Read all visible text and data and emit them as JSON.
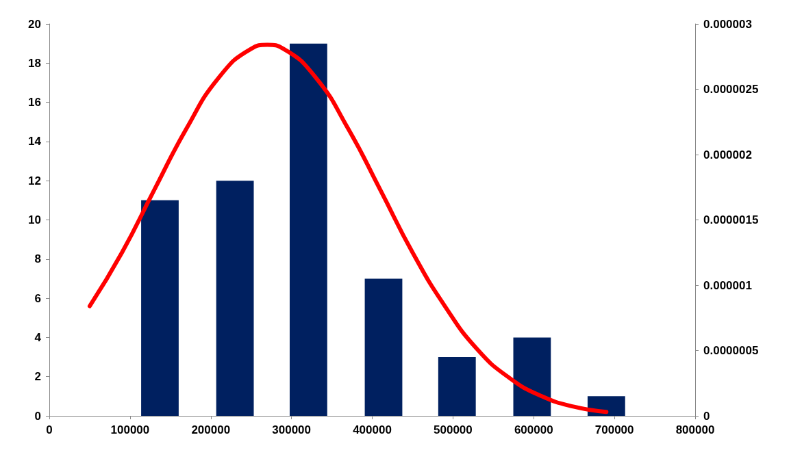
{
  "chart_data": {
    "type": "bar",
    "x": [
      137000,
      230000,
      321000,
      414000,
      505000,
      598000,
      690000
    ],
    "series": [
      {
        "color": "#002060",
        "values": [
          11,
          12,
          19,
          7,
          3,
          4,
          1
        ]
      },
      {
        "type": "line",
        "axis": "y2",
        "color": "#ff0000",
        "x": [
          50000,
          90000,
          130000,
          170000,
          210000,
          250000,
          270000,
          290000,
          330000,
          370000,
          410000,
          450000,
          490000,
          530000,
          570000,
          610000,
          650000,
          690000
        ],
        "values": [
          8.4e-07,
          1.25e-06,
          1.73e-06,
          2.2e-06,
          2.59e-06,
          2.81e-06,
          2.84e-06,
          2.81e-06,
          2.59e-06,
          2.2e-06,
          1.73e-06,
          1.25e-06,
          8.4e-07,
          5.1e-07,
          2.9e-07,
          1.5e-07,
          7e-08,
          3e-08
        ]
      }
    ],
    "xlim": [
      0,
      800000
    ],
    "xticks": [
      0,
      100000,
      200000,
      300000,
      400000,
      500000,
      600000,
      700000,
      800000
    ],
    "ylim": [
      0,
      20
    ],
    "yticks": [
      0,
      2,
      4,
      6,
      8,
      10,
      12,
      14,
      16,
      18,
      20
    ],
    "y2lim": [
      0,
      3e-06
    ],
    "y2ticks": [
      {
        "value": 0,
        "label": "0"
      },
      {
        "value": 5e-07,
        "label": "0.0000005"
      },
      {
        "value": 1e-06,
        "label": "0.000001"
      },
      {
        "value": 1.5e-06,
        "label": "0.0000015"
      },
      {
        "value": 2e-06,
        "label": "0.000002"
      },
      {
        "value": 2.5e-06,
        "label": "0.0000025"
      },
      {
        "value": 3e-06,
        "label": "0.000003"
      }
    ],
    "grid": false,
    "marker": "none",
    "line_style": "solid"
  }
}
